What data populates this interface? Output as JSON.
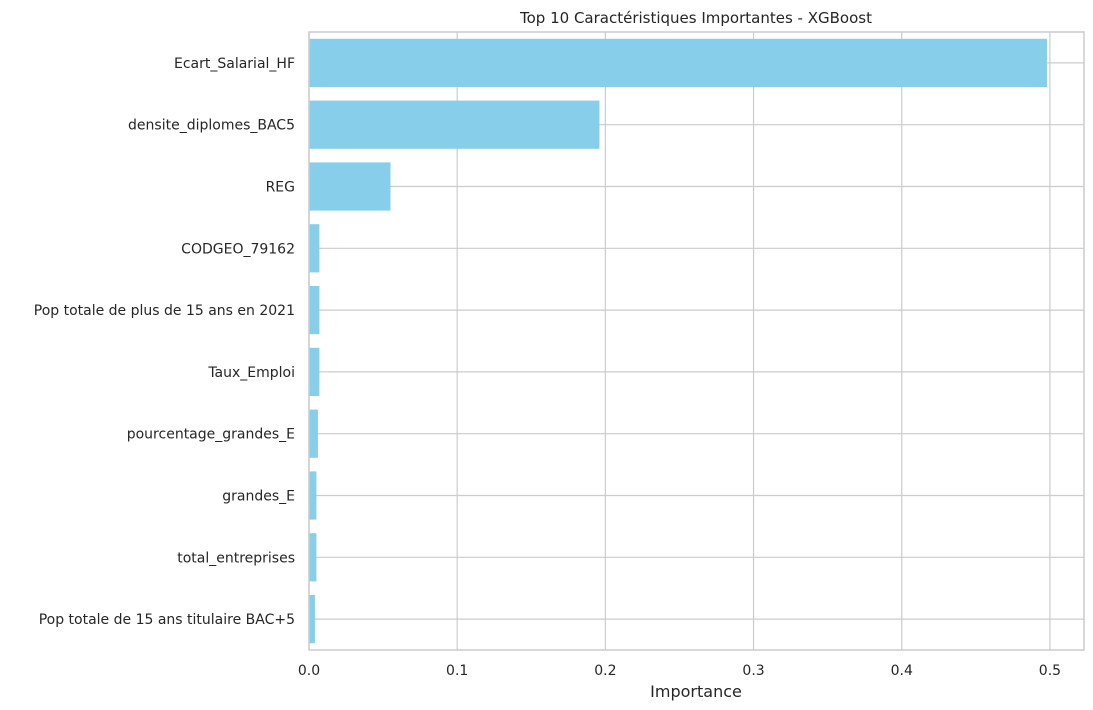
{
  "chart_data": {
    "type": "bar",
    "orientation": "horizontal",
    "title": "Top 10 Caractéristiques Importantes - XGBoost",
    "xlabel": "Importance",
    "ylabel": "",
    "xlim": [
      0,
      0.523
    ],
    "xticks": [
      0.0,
      0.1,
      0.2,
      0.3,
      0.4,
      0.5
    ],
    "xtick_labels": [
      "0.0",
      "0.1",
      "0.2",
      "0.3",
      "0.4",
      "0.5"
    ],
    "grid": true,
    "bar_color": "#87CEEB",
    "categories": [
      "Ecart_Salarial_HF",
      "densite_diplomes_BAC5",
      "REG",
      "CODGEO_79162",
      "Pop totale de plus de 15 ans en 2021",
      "Taux_Emploi",
      "pourcentage_grandes_E",
      "grandes_E",
      "total_entreprises",
      "Pop totale de 15 ans titulaire BAC+5"
    ],
    "values": [
      0.498,
      0.196,
      0.055,
      0.007,
      0.007,
      0.007,
      0.006,
      0.005,
      0.005,
      0.004
    ]
  }
}
